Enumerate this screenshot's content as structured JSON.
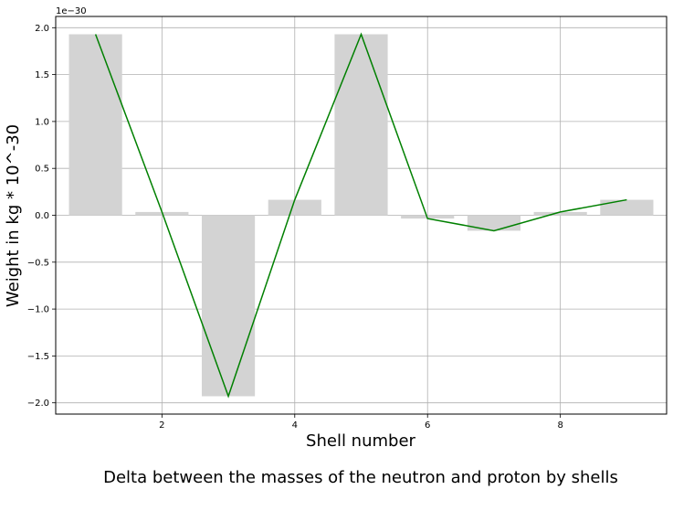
{
  "chart_data": {
    "type": "bar",
    "title": "",
    "caption": "Delta between the masses of the neutron and proton by shells",
    "xlabel": "Shell number",
    "ylabel": "Weight in kg * 10^-30",
    "y_offset_label": "1e−30",
    "x": [
      1,
      2,
      3,
      4,
      5,
      6,
      7,
      8,
      9
    ],
    "series": [
      {
        "type": "bar",
        "values": [
          1.93,
          0.035,
          -1.93,
          0.165,
          1.93,
          -0.035,
          -0.165,
          0.035,
          0.165
        ],
        "color": "#d3d3d3"
      },
      {
        "type": "line",
        "values": [
          1.93,
          0.035,
          -1.93,
          0.165,
          1.93,
          -0.035,
          -0.165,
          0.035,
          0.165
        ],
        "color": "#008000"
      }
    ],
    "xlim": [
      0.4,
      9.6
    ],
    "ylim": [
      -2.12,
      2.12
    ],
    "x_ticks": [
      2,
      4,
      6,
      8
    ],
    "x_tick_labels": [
      "2",
      "4",
      "6",
      "8"
    ],
    "y_ticks": [
      -2.0,
      -1.5,
      -1.0,
      -0.5,
      0.0,
      0.5,
      1.0,
      1.5,
      2.0
    ],
    "y_tick_labels": [
      "−2.0",
      "−1.5",
      "−1.0",
      "−0.5",
      "0.0",
      "0.5",
      "1.0",
      "1.5",
      "2.0"
    ],
    "grid": true
  }
}
